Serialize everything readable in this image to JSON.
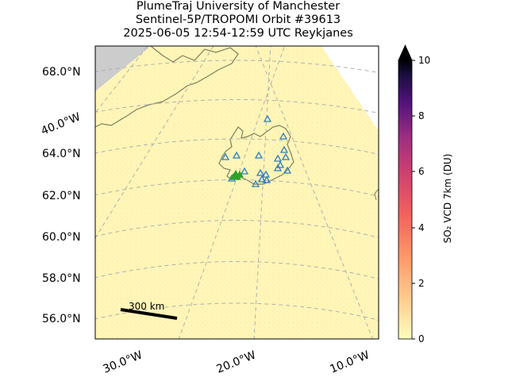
{
  "title": {
    "line1": "PlumeTraj    University of Manchester",
    "line2": "Sentinel-5P/TROPOMI Orbit #39613",
    "line3": "2025-06-05   12:54-12:59 UTC   Reykjanes"
  },
  "map": {
    "lat_labels": [
      "68.0°N",
      "64.0°N",
      "62.0°N",
      "60.0°N",
      "58.0°N",
      "56.0°N"
    ],
    "lon_labels_bottom": [
      "30.0°W",
      "20.0°W",
      "10.0°W"
    ],
    "lon_label_left": "40.0°W",
    "scale_bar_label": "300 km",
    "swath_color": "#fff6b8",
    "land_mask_color": "#cccccc",
    "coastline_color": "#808060",
    "volcano_marker_color": "#2f7fbf",
    "source_marker_color": "#2ca02c"
  },
  "colorbar": {
    "label": "SO₂ VCD 7km (DU)",
    "ticks": [
      "0",
      "2",
      "4",
      "6",
      "8",
      "10"
    ],
    "min": 0,
    "max": 10,
    "extend": "max",
    "colormap": "magma_r"
  }
}
